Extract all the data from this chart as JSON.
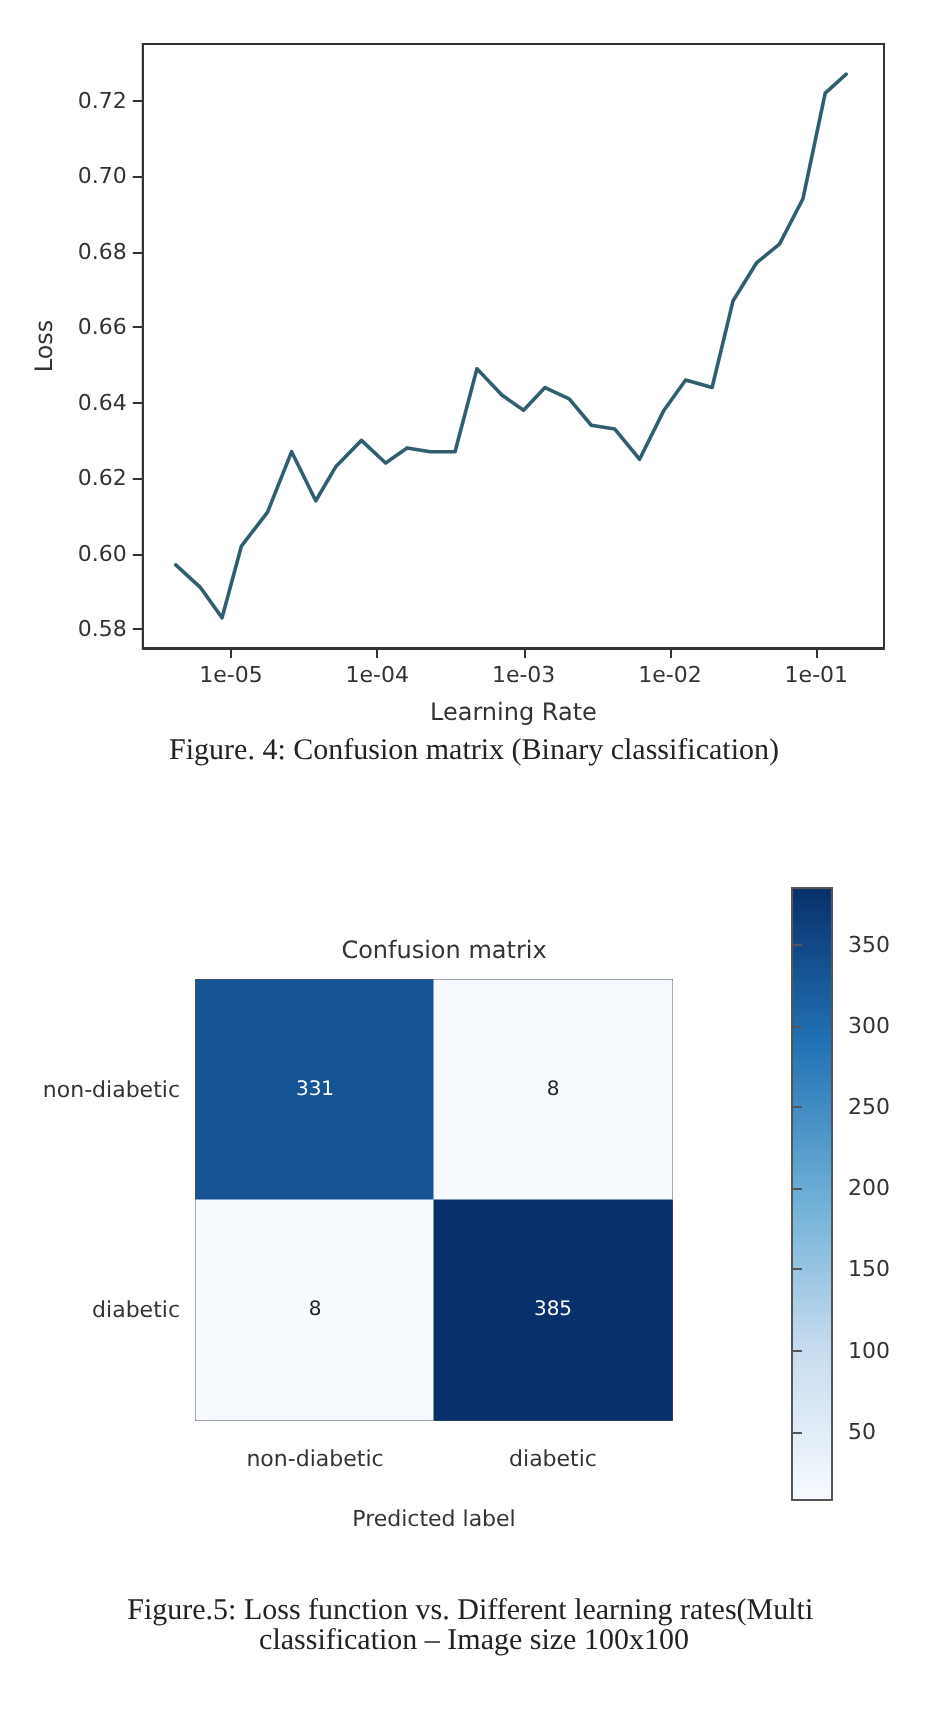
{
  "chart_data": [
    {
      "type": "line",
      "xlabel": "Learning Rate",
      "ylabel": "Loss",
      "log": "x",
      "grid": false,
      "marker": "none",
      "line_style": "solid",
      "x": [
        4.2e-06,
        6.2e-06,
        8.7e-06,
        1.18e-05,
        1.78e-05,
        2.6e-05,
        3.8e-05,
        5.2e-05,
        7.8e-05,
        0.000114,
        0.00016,
        0.00023,
        0.00034,
        0.00048,
        0.00071,
        0.001,
        0.0014,
        0.00205,
        0.0029,
        0.0042,
        0.0062,
        0.0091,
        0.0128,
        0.0194,
        0.027,
        0.039,
        0.056,
        0.081,
        0.115,
        0.16
      ],
      "series": [
        {
          "color": "#2f5f6e",
          "values": [
            0.597,
            0.591,
            0.583,
            0.602,
            0.611,
            0.627,
            0.614,
            0.623,
            0.63,
            0.624,
            0.628,
            0.627,
            0.627,
            0.649,
            0.642,
            0.638,
            0.644,
            0.641,
            0.634,
            0.633,
            0.625,
            0.638,
            0.646,
            0.644,
            0.667,
            0.677,
            0.682,
            0.694,
            0.722,
            0.727
          ]
        }
      ],
      "xlim": [
        2.5e-06,
        0.29
      ],
      "ylim": [
        0.575,
        0.735
      ],
      "xticks": [
        {
          "value": 1e-05,
          "label": "1e-05"
        },
        {
          "value": 0.0001,
          "label": "1e-04"
        },
        {
          "value": 0.001,
          "label": "1e-03"
        },
        {
          "value": 0.01,
          "label": "1e-02"
        },
        {
          "value": 0.1,
          "label": "1e-01"
        }
      ],
      "yticks": [
        {
          "value": 0.58,
          "label": "0.58"
        },
        {
          "value": 0.6,
          "label": "0.60"
        },
        {
          "value": 0.62,
          "label": "0.62"
        },
        {
          "value": 0.64,
          "label": "0.64"
        },
        {
          "value": 0.66,
          "label": "0.66"
        },
        {
          "value": 0.68,
          "label": "0.68"
        },
        {
          "value": 0.7,
          "label": "0.70"
        },
        {
          "value": 0.72,
          "label": "0.72"
        }
      ],
      "annotations": [
        "Figure. 4: Confusion matrix (Binary classification)"
      ]
    },
    {
      "type": "heatmap",
      "title": "Confusion matrix",
      "xlabel": "Predicted label",
      "categories": [
        "non-diabetic",
        "diabetic"
      ],
      "y_categories": [
        "non-diabetic",
        "diabetic"
      ],
      "cells": [
        [
          331,
          8
        ],
        [
          8,
          385
        ]
      ],
      "data_labels": true,
      "clim": [
        8,
        385
      ],
      "cticks": [
        50,
        100,
        150,
        200,
        250,
        300,
        350
      ],
      "annotations": [
        "Figure.5: Loss function vs. Different learning rates(Multi classification – Image size 100x100"
      ]
    }
  ]
}
